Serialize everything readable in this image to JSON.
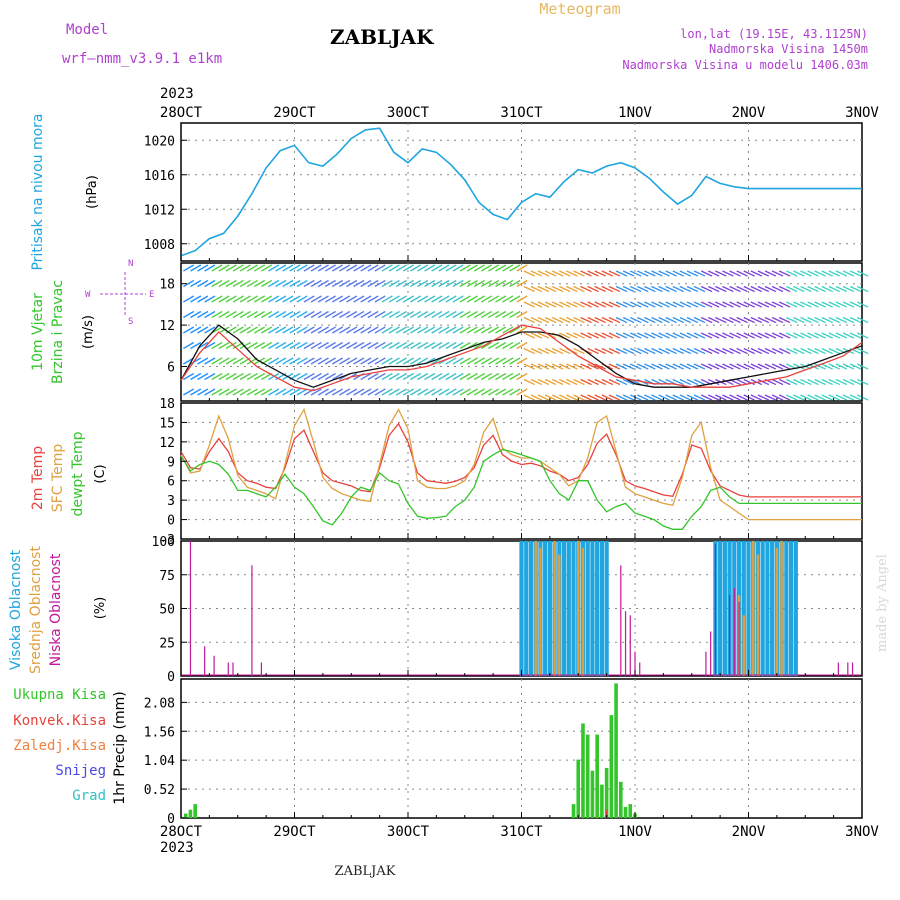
{
  "header": {
    "model_label": "Model",
    "model_name": "wrf—nmm_v3.9.1  e1km",
    "station": "ZABLJAK",
    "product": "Meteogram",
    "lonlat": "lon,lat (19.15E, 43.1125N)",
    "altitude": "Nadmorska Visina 1450m",
    "model_altitude": "Nadmorska Visina u modelu 1406.03m",
    "year_top": "2023",
    "year_bottom": "2023",
    "footer": "ZABLJAK",
    "credit": "made by Angel"
  },
  "colors": {
    "pressure": "#1fa5e0",
    "temp2m": "#e8423c",
    "sfc": "#e0a040",
    "dewpt": "#33c52a",
    "high_cloud": "#1fa5e0",
    "mid_cloud": "#e0a040",
    "low_cloud": "#c0189a",
    "precip": "#33c52a",
    "conv": "#e8423c",
    "snow": "#4a4ae0",
    "hail": "#33c0c0",
    "wind_label": "#b040d0"
  },
  "chart_data": [
    {
      "type": "line",
      "panel": "pressure",
      "ylabel": "Pritisak na nivou mora",
      "unit": "(hPa)",
      "x_ticks": [
        "28OCT",
        "29OCT",
        "30OCT",
        "31OCT",
        "1NOV",
        "2NOV",
        "3NOV"
      ],
      "yticks": [
        1008,
        1012,
        1016,
        1020
      ],
      "ylim": [
        1006,
        1022
      ],
      "grid": true,
      "series": [
        {
          "x": [
            0,
            3,
            6,
            9,
            12,
            15,
            18,
            21,
            24,
            27,
            30,
            33,
            36,
            39,
            42,
            45,
            48,
            51,
            54,
            57,
            60,
            63,
            66,
            69,
            72,
            75,
            78,
            81,
            84,
            87,
            90,
            93,
            96,
            99,
            102,
            105,
            108,
            111,
            114,
            117,
            120,
            123,
            126,
            129,
            132,
            135,
            138,
            141,
            144
          ],
          "values": [
            1006.6,
            1007.2,
            1008.6,
            1009.2,
            1011.2,
            1013.8,
            1016.8,
            1018.8,
            1019.4,
            1017.4,
            1017.0,
            1018.4,
            1020.2,
            1021.2,
            1021.4,
            1018.6,
            1017.4,
            1019.0,
            1018.6,
            1017.2,
            1015.4,
            1012.8,
            1011.4,
            1010.8,
            1012.8,
            1013.8,
            1013.4,
            1015.2,
            1016.6,
            1016.2,
            1017.0,
            1017.4,
            1016.8,
            1015.6,
            1014.0,
            1012.6,
            1013.6,
            1015.8,
            1015.0,
            1014.6,
            1014.4,
            1014.4,
            1014.4,
            1014.4,
            1014.4,
            1014.4,
            1014.4,
            1014.4,
            1014.4
          ]
        }
      ]
    },
    {
      "type": "line",
      "panel": "wind",
      "ylabel": "10m Vjetar",
      "ylabel2": "Brzina i Pravac",
      "unit": "(m/s)",
      "compass": {
        "n": "N",
        "w": "W",
        "e": "E",
        "s": "S"
      },
      "yticks": [
        6,
        12,
        18
      ],
      "ylim": [
        1,
        21
      ],
      "grid": true,
      "series": [
        {
          "name": "speed",
          "x": [
            0,
            4,
            8,
            12,
            16,
            20,
            24,
            28,
            32,
            36,
            40,
            44,
            48,
            52,
            56,
            60,
            64,
            68,
            72,
            76,
            80,
            84,
            88,
            92,
            96,
            100,
            104,
            108,
            112,
            116,
            120,
            124,
            128,
            132,
            136,
            140,
            144
          ],
          "values": [
            4.0,
            9.0,
            12.0,
            10.0,
            7.0,
            5.5,
            4.0,
            3.0,
            4.0,
            5.0,
            5.5,
            6.0,
            6.0,
            6.5,
            7.5,
            8.5,
            9.5,
            10.0,
            11.0,
            11.0,
            10.5,
            9.0,
            7.0,
            5.0,
            3.5,
            3.0,
            3.0,
            3.0,
            3.5,
            4.0,
            4.5,
            5.0,
            5.5,
            6.0,
            7.0,
            8.0,
            9.0
          ]
        },
        {
          "name": "gust",
          "x": [
            0,
            4,
            8,
            12,
            16,
            20,
            24,
            28,
            32,
            36,
            40,
            44,
            48,
            52,
            56,
            60,
            64,
            68,
            72,
            76,
            80,
            84,
            88,
            92,
            96,
            100,
            104,
            108,
            112,
            116,
            120,
            124,
            128,
            132,
            136,
            140,
            144
          ],
          "values": [
            4.0,
            8.0,
            11.0,
            8.5,
            6.0,
            4.5,
            3.0,
            2.5,
            3.5,
            4.5,
            5.0,
            5.5,
            5.5,
            6.0,
            7.0,
            8.0,
            9.0,
            10.5,
            12.0,
            11.5,
            9.5,
            7.5,
            6.0,
            4.5,
            4.0,
            3.5,
            3.5,
            3.0,
            3.0,
            3.0,
            3.5,
            4.0,
            4.5,
            5.5,
            6.5,
            7.5,
            9.5
          ]
        }
      ]
    },
    {
      "type": "line",
      "panel": "temperature",
      "labels": [
        "2m Temp",
        "SFC Temp",
        "dewpt Temp"
      ],
      "unit": "(C)",
      "yticks": [
        -3,
        0,
        3,
        6,
        9,
        12,
        15,
        18
      ],
      "ylim": [
        -3,
        18
      ],
      "grid": true,
      "x": [
        0,
        2,
        4,
        6,
        8,
        10,
        12,
        14,
        16,
        18,
        20,
        22,
        24,
        26,
        28,
        30,
        32,
        34,
        36,
        38,
        40,
        42,
        44,
        46,
        48,
        50,
        52,
        54,
        56,
        58,
        60,
        62,
        64,
        66,
        68,
        70,
        72,
        74,
        76,
        78,
        80,
        82,
        84,
        86,
        88,
        90,
        92,
        94,
        96,
        98,
        100,
        102,
        104,
        106,
        108,
        110,
        112,
        114,
        116,
        118,
        120,
        122,
        124,
        126,
        128,
        130,
        132,
        134,
        136,
        138,
        140,
        142,
        144
      ],
      "series": [
        {
          "name": "2m Temp",
          "values": [
            10.5,
            8.0,
            7.8,
            10.5,
            12.5,
            10.5,
            7.2,
            6.0,
            5.6,
            5.0,
            4.8,
            8.0,
            12.5,
            13.8,
            10.5,
            7.2,
            6.0,
            5.6,
            5.2,
            4.5,
            4.3,
            8.0,
            13.0,
            14.8,
            12.0,
            7.2,
            6.0,
            5.8,
            5.6,
            5.9,
            6.5,
            8.0,
            11.5,
            13.0,
            10.0,
            9.0,
            8.5,
            8.7,
            8.3,
            7.5,
            7.0,
            6.0,
            6.5,
            8.5,
            11.8,
            13.2,
            10.0,
            6.0,
            5.2,
            4.8,
            4.3,
            3.8,
            3.6,
            7.0,
            11.5,
            11.0,
            7.5,
            5.2,
            4.5,
            3.8,
            3.5,
            3.5,
            3.5,
            3.5,
            3.5,
            3.5,
            3.5,
            3.5,
            3.5,
            3.5,
            3.5,
            3.5,
            3.5
          ]
        },
        {
          "name": "SFC Temp",
          "values": [
            10.0,
            7.2,
            7.5,
            11.5,
            16.0,
            12.5,
            6.8,
            5.0,
            4.5,
            4.0,
            3.2,
            8.5,
            14.5,
            17.0,
            12.0,
            6.5,
            4.8,
            4.0,
            3.5,
            3.0,
            2.8,
            8.5,
            14.5,
            17.0,
            14.0,
            6.0,
            5.0,
            4.8,
            4.8,
            5.2,
            6.0,
            8.5,
            13.5,
            15.6,
            11.0,
            10.0,
            9.5,
            9.5,
            9.0,
            8.0,
            7.0,
            5.2,
            6.0,
            9.5,
            15.0,
            16.0,
            10.5,
            5.0,
            4.0,
            3.5,
            3.0,
            2.5,
            2.2,
            6.5,
            13.0,
            15.0,
            8.0,
            3.0,
            2.0,
            1.0,
            0.0,
            0.0,
            0.0,
            0.0,
            0.0,
            0.0,
            0.0,
            0.0,
            0.0,
            0.0,
            0.0,
            0.0,
            0.0
          ]
        },
        {
          "name": "dewpt Temp",
          "values": [
            9.8,
            7.5,
            8.5,
            9.0,
            8.5,
            7.0,
            4.5,
            4.5,
            4.0,
            3.5,
            5.0,
            7.0,
            5.0,
            4.0,
            2.0,
            -0.2,
            -0.8,
            1.0,
            3.5,
            5.0,
            4.5,
            7.2,
            6.0,
            5.5,
            2.5,
            0.5,
            0.2,
            0.3,
            0.5,
            2.0,
            3.0,
            5.0,
            9.0,
            10.0,
            10.8,
            10.5,
            10.0,
            9.5,
            9.0,
            6.0,
            4.0,
            3.0,
            6.0,
            6.0,
            3.0,
            1.2,
            2.0,
            2.5,
            1.0,
            0.5,
            0.0,
            -1.0,
            -1.5,
            -1.5,
            0.5,
            2.0,
            4.5,
            5.0,
            3.5,
            2.5,
            2.5,
            2.5,
            2.5,
            2.5,
            2.5,
            2.5,
            2.5,
            2.5,
            2.5,
            2.5,
            2.5,
            2.5,
            2.5
          ]
        }
      ]
    },
    {
      "type": "bar",
      "panel": "cloud",
      "labels": [
        "Visoka Oblacnost",
        "Srednja Oblacnost",
        "Niska Oblacnost"
      ],
      "unit": "(%)",
      "yticks": [
        0,
        25,
        50,
        75,
        100
      ],
      "ylim": [
        0,
        100
      ],
      "grid": true,
      "high": {
        "x": [
          72,
          73,
          74,
          75,
          76,
          77,
          78,
          79,
          80,
          81,
          82,
          83,
          84,
          85,
          86,
          87,
          88,
          89,
          90,
          113,
          114,
          115,
          116,
          117,
          118,
          119,
          120,
          121,
          122,
          123,
          124,
          125,
          126,
          127,
          128,
          129,
          130
        ],
        "values": [
          100,
          100,
          100,
          100,
          100,
          100,
          100,
          100,
          100,
          100,
          100,
          100,
          100,
          100,
          100,
          100,
          100,
          100,
          100,
          100,
          100,
          100,
          100,
          100,
          100,
          100,
          100,
          100,
          100,
          100,
          100,
          100,
          100,
          100,
          100,
          100,
          100
        ]
      },
      "mid": {
        "x": [
          75,
          76,
          79,
          80,
          84,
          85,
          118,
          119,
          121,
          122,
          126,
          127
        ],
        "values": [
          100,
          95,
          100,
          90,
          100,
          95,
          60,
          45,
          100,
          90,
          95,
          100
        ]
      },
      "low": {
        "x": [
          2,
          5,
          7,
          10,
          11,
          15,
          17,
          93,
          94,
          95,
          96,
          97,
          111,
          112,
          113,
          116,
          117,
          118,
          139,
          141,
          142
        ],
        "values": [
          100,
          22,
          15,
          10,
          10,
          82,
          10,
          82,
          48,
          45,
          18,
          10,
          18,
          33,
          98,
          60,
          65,
          55,
          10,
          10,
          10
        ]
      }
    },
    {
      "type": "bar",
      "panel": "precip",
      "labels": [
        "Ukupna Kisa",
        "Konvek.Kisa",
        "Zaledj.Kisa",
        "Snijeg",
        "Grad"
      ],
      "ylabel": "1hr Precip (mm)",
      "yticks": [
        0,
        0.52,
        1.04,
        1.56,
        2.08
      ],
      "ylim": [
        0,
        2.5
      ],
      "grid": true,
      "x_ticks": [
        "28OCT",
        "29OCT",
        "30OCT",
        "31OCT",
        "1NOV",
        "2NOV",
        "3NOV"
      ],
      "total": {
        "x": [
          1,
          2,
          3,
          83,
          84,
          85,
          86,
          87,
          88,
          89,
          90,
          91,
          92,
          93,
          94,
          95,
          96
        ],
        "values": [
          0.08,
          0.15,
          0.25,
          0.25,
          1.05,
          1.7,
          1.5,
          0.85,
          1.5,
          0.6,
          0.9,
          1.85,
          2.42,
          0.65,
          0.2,
          0.25,
          0.08
        ]
      },
      "conv": {
        "x": [
          90
        ],
        "values": [
          0.15
        ]
      }
    }
  ]
}
